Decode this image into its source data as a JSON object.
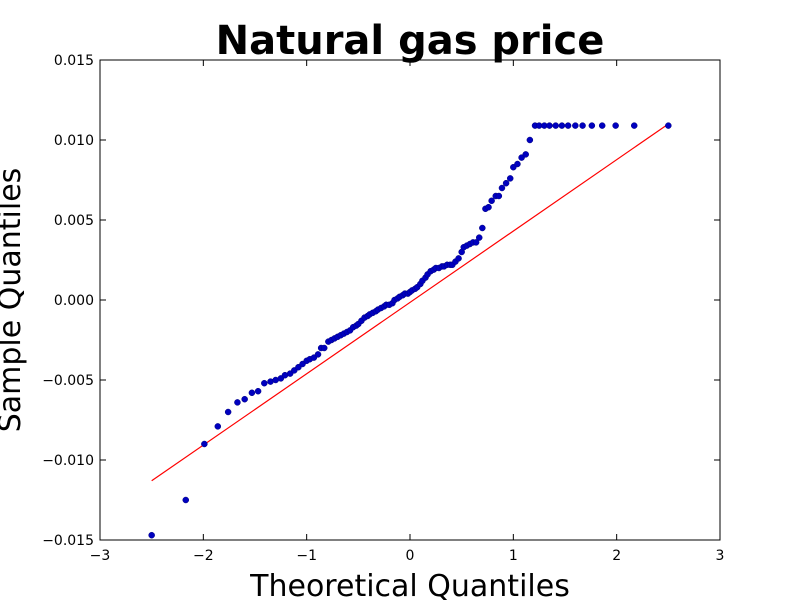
{
  "chart_data": {
    "type": "scatter",
    "title": "Natural gas price",
    "xlabel": "Theoretical Quantiles",
    "ylabel": "Sample Quantiles",
    "xlim": [
      -3,
      3
    ],
    "ylim": [
      -0.015,
      0.015
    ],
    "xticks": [
      -3,
      -2,
      -1,
      0,
      1,
      2,
      3
    ],
    "xtick_labels": [
      "−3",
      "−2",
      "−1",
      "0",
      "1",
      "2",
      "3"
    ],
    "yticks": [
      0.015,
      0.01,
      0.005,
      0.0,
      -0.005,
      -0.01,
      -0.015
    ],
    "ytick_labels": [
      "0.015",
      "0.010",
      "0.005",
      "0.000",
      "−0.005",
      "−0.010",
      "−0.015"
    ],
    "grid": false,
    "point_color": "#0000bf",
    "line_color": "#ff0000",
    "reference_line": {
      "x": [
        -2.5,
        2.5
      ],
      "y": [
        -0.0113,
        0.011
      ]
    },
    "series": [
      {
        "x": [
          -2.5,
          -2.17,
          -1.99,
          -1.86,
          -1.76,
          -1.67,
          -1.6,
          -1.53,
          -1.47,
          -1.41,
          -1.35,
          -1.3,
          -1.25,
          -1.21,
          -1.16,
          -1.12,
          -1.08,
          -1.04,
          -1.0,
          -0.97,
          -0.93,
          -0.89,
          -0.86,
          -0.83,
          -0.79,
          -0.76,
          -0.73,
          -0.7,
          -0.67,
          -0.64,
          -0.61,
          -0.58,
          -0.55,
          -0.52,
          -0.5,
          -0.47,
          -0.44,
          -0.41,
          -0.39,
          -0.36,
          -0.33,
          -0.31,
          -0.28,
          -0.25,
          -0.23,
          -0.2,
          -0.17,
          -0.15,
          -0.12,
          -0.1,
          -0.07,
          -0.05,
          -0.02,
          0.0,
          0.02,
          0.05,
          0.07,
          0.1,
          0.12,
          0.15,
          0.17,
          0.2,
          0.23,
          0.25,
          0.28,
          0.31,
          0.33,
          0.36,
          0.39,
          0.41,
          0.44,
          0.47,
          0.5,
          0.52,
          0.55,
          0.58,
          0.61,
          0.64,
          0.67,
          0.7,
          0.73,
          0.76,
          0.79,
          0.83,
          0.86,
          0.89,
          0.93,
          0.97,
          1.0,
          1.04,
          1.08,
          1.12,
          1.16,
          1.21,
          1.25,
          1.3,
          1.35,
          1.41,
          1.47,
          1.53,
          1.6,
          1.67,
          1.76,
          1.86,
          1.99,
          2.17,
          2.5
        ],
        "y": [
          -0.0147,
          -0.0125,
          -0.009,
          -0.0079,
          -0.007,
          -0.0064,
          -0.0062,
          -0.0058,
          -0.0057,
          -0.0052,
          -0.0051,
          -0.005,
          -0.0049,
          -0.0047,
          -0.0046,
          -0.0044,
          -0.0042,
          -0.004,
          -0.0038,
          -0.0037,
          -0.0036,
          -0.0034,
          -0.003,
          -0.003,
          -0.0026,
          -0.0025,
          -0.0024,
          -0.0023,
          -0.0022,
          -0.0021,
          -0.002,
          -0.0019,
          -0.0017,
          -0.0016,
          -0.0015,
          -0.0013,
          -0.0011,
          -0.001,
          -0.0009,
          -0.0008,
          -0.0007,
          -0.0006,
          -0.0005,
          -0.0004,
          -0.0003,
          -0.0003,
          -0.0002,
          0.0,
          0.0001,
          0.0002,
          0.0003,
          0.0004,
          0.0004,
          0.0005,
          0.0006,
          0.0007,
          0.0008,
          0.001,
          0.0012,
          0.0014,
          0.0016,
          0.0018,
          0.0019,
          0.002,
          0.002,
          0.0021,
          0.0021,
          0.0022,
          0.0022,
          0.0022,
          0.0024,
          0.0026,
          0.003,
          0.0033,
          0.0034,
          0.0035,
          0.0036,
          0.0036,
          0.0039,
          0.0045,
          0.0057,
          0.0058,
          0.0062,
          0.0065,
          0.0065,
          0.007,
          0.0073,
          0.0076,
          0.0083,
          0.0085,
          0.0089,
          0.0091,
          0.01,
          0.0109,
          0.0109,
          0.0109,
          0.0109,
          0.0109,
          0.0109,
          0.0109,
          0.0109,
          0.0109,
          0.0109,
          0.0109,
          0.0109,
          0.0109,
          0.0109
        ]
      }
    ]
  }
}
